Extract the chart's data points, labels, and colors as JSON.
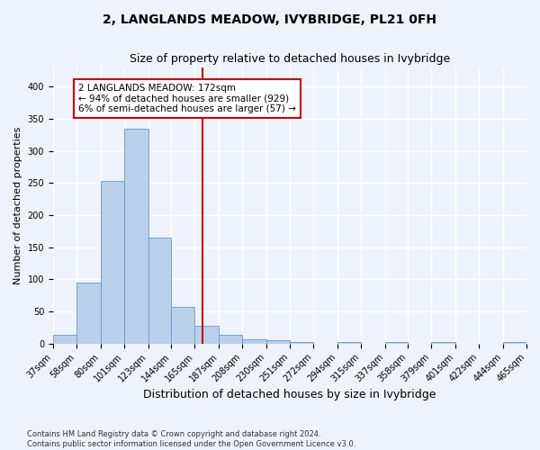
{
  "title": "2, LANGLANDS MEADOW, IVYBRIDGE, PL21 0FH",
  "subtitle": "Size of property relative to detached houses in Ivybridge",
  "xlabel": "Distribution of detached houses by size in Ivybridge",
  "ylabel": "Number of detached properties",
  "bin_edges": [
    37,
    58,
    80,
    101,
    123,
    144,
    165,
    187,
    208,
    230,
    251,
    272,
    294,
    315,
    337,
    358,
    379,
    401,
    422,
    444,
    465
  ],
  "bar_heights": [
    14,
    95,
    253,
    334,
    165,
    57,
    28,
    14,
    7,
    5,
    3,
    0,
    2,
    0,
    3,
    0,
    2,
    0,
    0,
    2
  ],
  "bar_color": "#b8d0ea",
  "bar_edge_color": "#6699cc",
  "vline_x": 172,
  "vline_color": "#cc0000",
  "annotation_text": "2 LANGLANDS MEADOW: 172sqm\n← 94% of detached houses are smaller (929)\n6% of semi-detached houses are larger (57) →",
  "annotation_box_color": "white",
  "annotation_box_edge_color": "#cc0000",
  "ylim": [
    0,
    430
  ],
  "yticks": [
    0,
    50,
    100,
    150,
    200,
    250,
    300,
    350,
    400
  ],
  "footnote": "Contains HM Land Registry data © Crown copyright and database right 2024.\nContains public sector information licensed under the Open Government Licence v3.0.",
  "bg_color": "#eef2fa",
  "grid_color": "#ffffff",
  "title_fontsize": 10,
  "subtitle_fontsize": 9,
  "xlabel_fontsize": 9,
  "ylabel_fontsize": 8,
  "tick_fontsize": 7,
  "annotation_fontsize": 7.5
}
